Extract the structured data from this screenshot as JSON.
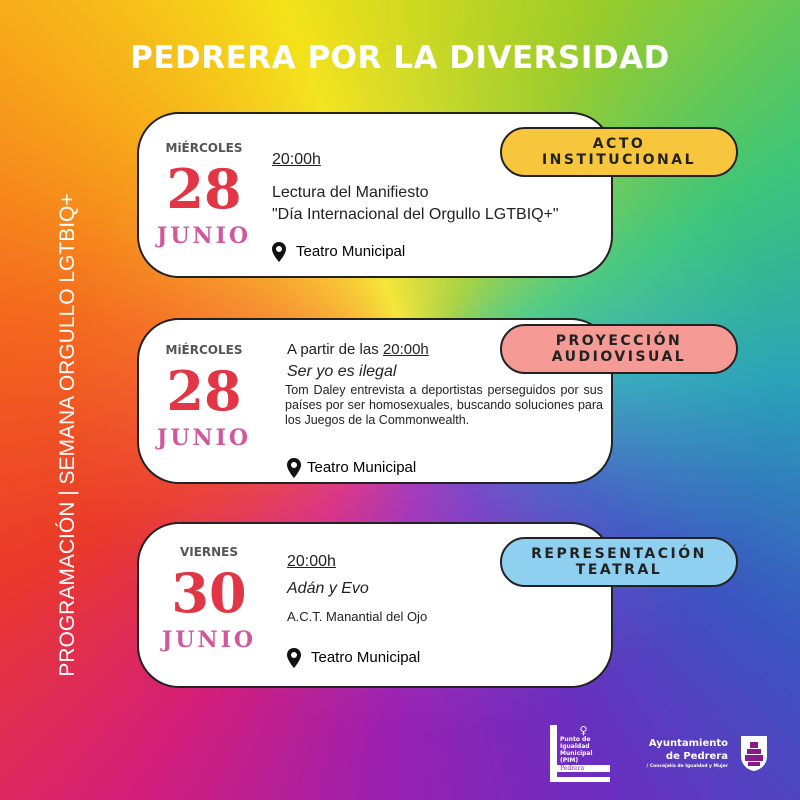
{
  "title": "PEDRERA POR LA DIVERSIDAD",
  "side_text": "PROGRAMACIÓN | SEMANA ORGULLO LGTBIQ+",
  "events": [
    {
      "weekday": "MiÉRCOLES",
      "day": "28",
      "month": "JUNIO",
      "time": "20:00h",
      "title_line1": "Lectura del Manifiesto",
      "title_line2": "\"Día Internacional del Orgullo LGTBIQ+\"",
      "location": "Teatro Municipal",
      "badge_line1": "ACTO",
      "badge_line2": "INSTITUCIONAL",
      "badge_color": "#f7c63d"
    },
    {
      "weekday": "MiÉRCOLES",
      "day": "28",
      "month": "JUNIO",
      "time_prefix": "A partir de las",
      "time": "20:00h",
      "title": "Ser yo es ilegal",
      "description": "Tom Daley entrevista a deportistas perseguidos por sus países por ser homosexuales, buscando soluciones para los Juegos de la Commonwealth.",
      "location": "Teatro Municipal",
      "badge_line1": "PROYECCIÓN",
      "badge_line2": "AUDIOVISUAL",
      "badge_color": "#f59a94"
    },
    {
      "weekday": "VIERNES",
      "day": "30",
      "month": "JUNIO",
      "time": "20:00h",
      "title": "Adán y Evo",
      "subtitle": "A.C.T. Manantial del Ojo",
      "location": "Teatro Municipal",
      "badge_line1": "REPRESENTACIÓN",
      "badge_line2": "TEATRAL",
      "badge_color": "#8fd0f0"
    }
  ],
  "logos": {
    "pim": {
      "line1": "Punto de",
      "line2": "Igualdad",
      "line3": "Municipal",
      "line4": "(PIM)",
      "town": "Pedrera"
    },
    "ayto": {
      "line1": "Ayuntamiento",
      "line2": "de Pedrera",
      "line3": "/ Concejalía de Igualdad y Mujer"
    }
  }
}
